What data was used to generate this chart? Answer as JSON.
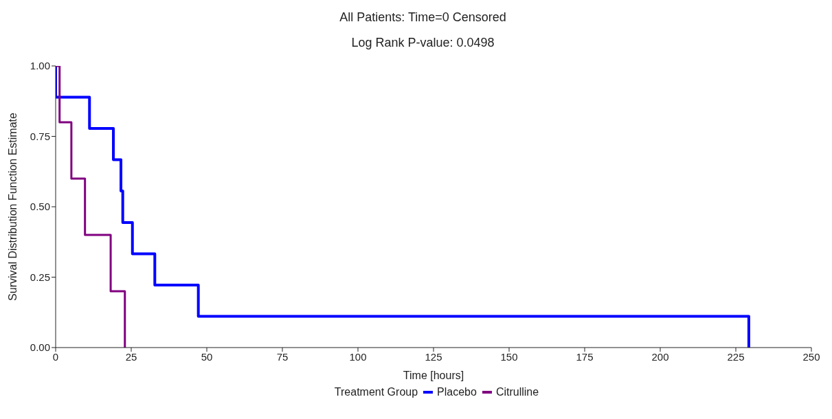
{
  "chart_data": {
    "type": "step",
    "title": "All Patients: Time=0 Censored",
    "subtitle": "Log Rank P-value: 0.0498",
    "xlabel": "Time [hours]",
    "ylabel": "Survival Distribution Function Estimate",
    "legend_title": "Treatment Group",
    "series": [
      {
        "name": "Placebo",
        "color": "#0000ff",
        "x": [
          0,
          0,
          11.2,
          19.1,
          21.6,
          22.2,
          25.4,
          32.8,
          47.2,
          229.3
        ],
        "values": [
          1,
          0.889,
          0.778,
          0.667,
          0.556,
          0.444,
          0.333,
          0.222,
          0.111,
          0
        ]
      },
      {
        "name": "Citrulline",
        "color": "#800080",
        "x": [
          0,
          1.3,
          5.2,
          9.7,
          18.2,
          22.9
        ],
        "values": [
          1,
          0.8,
          0.6,
          0.4,
          0.2,
          0
        ]
      }
    ],
    "xlim": [
      0,
      250
    ],
    "xticks": [
      0,
      25,
      50,
      75,
      100,
      125,
      150,
      175,
      200,
      225,
      250
    ],
    "ylim": [
      0,
      1
    ],
    "yticks": [
      {
        "value": 0,
        "label": "0.00"
      },
      {
        "value": 0.25,
        "label": "0.25"
      },
      {
        "value": 0.5,
        "label": "0.50"
      },
      {
        "value": 0.75,
        "label": "0.75"
      },
      {
        "value": 1,
        "label": "1.00"
      }
    ],
    "grid": false,
    "legend": "bottom",
    "marker": "none",
    "line_style": "solid"
  }
}
